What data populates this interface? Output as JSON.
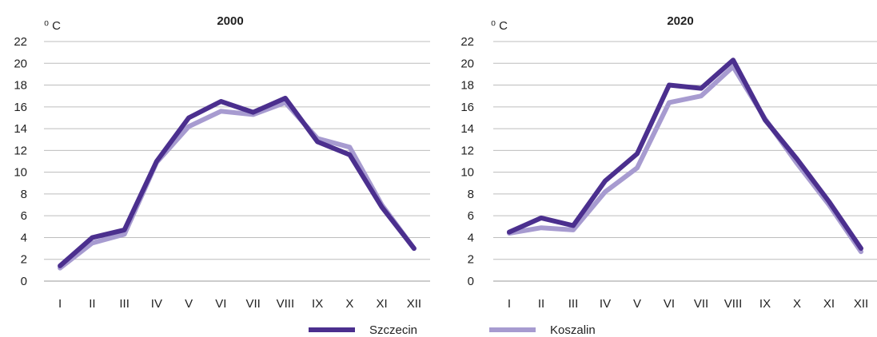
{
  "chart_data": [
    {
      "type": "line",
      "title": "2000",
      "unit_label": "⁰ C",
      "categories": [
        "I",
        "II",
        "III",
        "IV",
        "V",
        "VI",
        "VII",
        "VIII",
        "IX",
        "X",
        "XI",
        "XII"
      ],
      "yticks": [
        "0",
        "2",
        "4",
        "6",
        "8",
        "10",
        "12",
        "14",
        "16",
        "18",
        "20",
        "22"
      ],
      "ylim": [
        0,
        22
      ],
      "series": [
        {
          "name": "Szczecin",
          "color": "#4b2f8e",
          "values": [
            1.4,
            4.0,
            4.7,
            11.0,
            15.0,
            16.5,
            15.5,
            16.8,
            12.8,
            11.6,
            6.8,
            3.0
          ]
        },
        {
          "name": "Koszalin",
          "color": "#a79bd0",
          "values": [
            1.2,
            3.5,
            4.3,
            10.9,
            14.2,
            15.6,
            15.3,
            16.4,
            13.1,
            12.3,
            7.0,
            3.0
          ]
        }
      ]
    },
    {
      "type": "line",
      "title": "2020",
      "unit_label": "⁰ C",
      "categories": [
        "I",
        "II",
        "III",
        "IV",
        "V",
        "VI",
        "VII",
        "VIII",
        "IX",
        "X",
        "XI",
        "XII"
      ],
      "yticks": [
        "0",
        "2",
        "4",
        "6",
        "8",
        "10",
        "12",
        "14",
        "16",
        "18",
        "20",
        "22"
      ],
      "ylim": [
        0,
        22
      ],
      "series": [
        {
          "name": "Szczecin",
          "color": "#4b2f8e",
          "values": [
            4.5,
            5.8,
            5.1,
            9.2,
            11.7,
            18.0,
            17.7,
            20.3,
            14.8,
            11.2,
            7.3,
            3.0
          ]
        },
        {
          "name": "Koszalin",
          "color": "#a79bd0",
          "values": [
            4.4,
            4.9,
            4.7,
            8.2,
            10.4,
            16.4,
            17.0,
            19.7,
            14.9,
            10.8,
            7.0,
            2.7
          ]
        }
      ]
    }
  ],
  "legend": [
    {
      "label": "Szczecin",
      "color": "#4b2f8e"
    },
    {
      "label": "Koszalin",
      "color": "#a79bd0"
    }
  ]
}
